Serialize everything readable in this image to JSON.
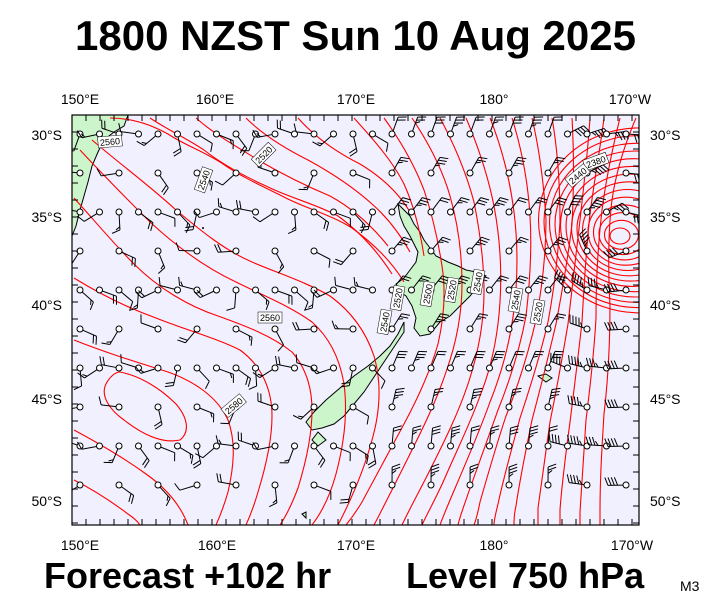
{
  "title": "1800 NZST Sun 10 Aug 2025",
  "forecast": "Forecast +102 hr",
  "level": "Level 750 hPa",
  "code": "M3",
  "map": {
    "lon_labels": [
      "150°E",
      "160°E",
      "170°E",
      "180°",
      "170°W"
    ],
    "lat_labels": [
      "30°S",
      "35°S",
      "40°S",
      "45°S",
      "50°S"
    ],
    "contour_labels": [
      "2560",
      "2520",
      "2540",
      "2520",
      "2500",
      "2520",
      "2540",
      "2540",
      "2520",
      "2380",
      "2440",
      "2560",
      "2580",
      "2540"
    ],
    "colors": {
      "ocean": "#f0f0ff",
      "land": "#ccf5cc",
      "contour": "#ff0000",
      "barb": "#000000"
    }
  }
}
